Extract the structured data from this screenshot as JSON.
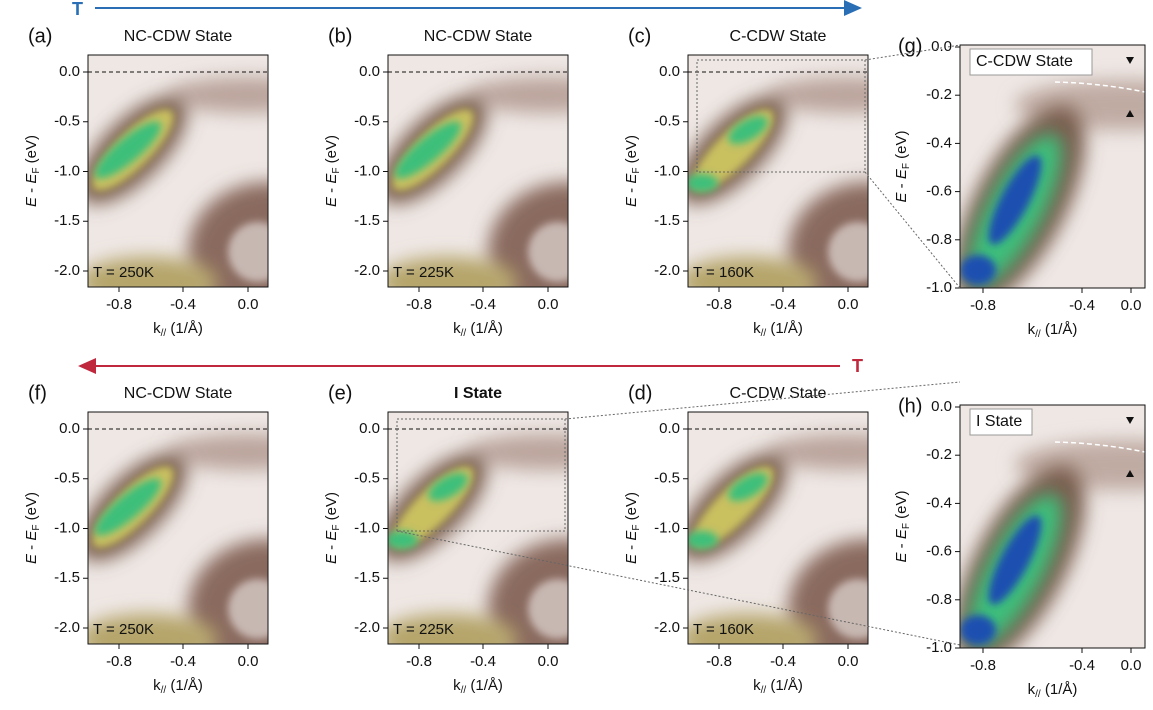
{
  "arrows": {
    "top": "T",
    "bottom": "T"
  },
  "panels": [
    {
      "label": "(a)",
      "title": "NC-CDW State",
      "temperature": "T = 250K"
    },
    {
      "label": "(b)",
      "title": "NC-CDW State",
      "temperature": "T = 225K"
    },
    {
      "label": "(c)",
      "title": "C-CDW State",
      "temperature": "T = 160K"
    },
    {
      "label": "(g)",
      "title": "C-CDW State"
    },
    {
      "label": "(f)",
      "title": "NC-CDW State",
      "temperature": "T = 250K"
    },
    {
      "label": "(e)",
      "title": "I State",
      "temperature": "T = 225K"
    },
    {
      "label": "(d)",
      "title": "C-CDW State",
      "temperature": "T = 160K"
    },
    {
      "label": "(h)",
      "title": "I State"
    }
  ],
  "axes": {
    "xlabel": {
      "main": "k",
      "sub": "//",
      "unit": " (1/Å)"
    },
    "ylabel": {
      "main": "E",
      "mid": " - ",
      "e": "E",
      "sub": "F",
      "unit": " (eV)"
    },
    "main": {
      "xticks": [
        "-0.8",
        "-0.4",
        "0.0"
      ],
      "yticks": [
        "0.0",
        "-0.5",
        "-1.0",
        "-1.5",
        "-2.0"
      ]
    },
    "zoom": {
      "xticks": [
        "-0.8",
        "-0.4",
        "0.0"
      ],
      "yticks": [
        "0.0",
        "-0.2",
        "-0.4",
        "-0.6",
        "-0.8",
        "-1.0"
      ]
    }
  }
}
